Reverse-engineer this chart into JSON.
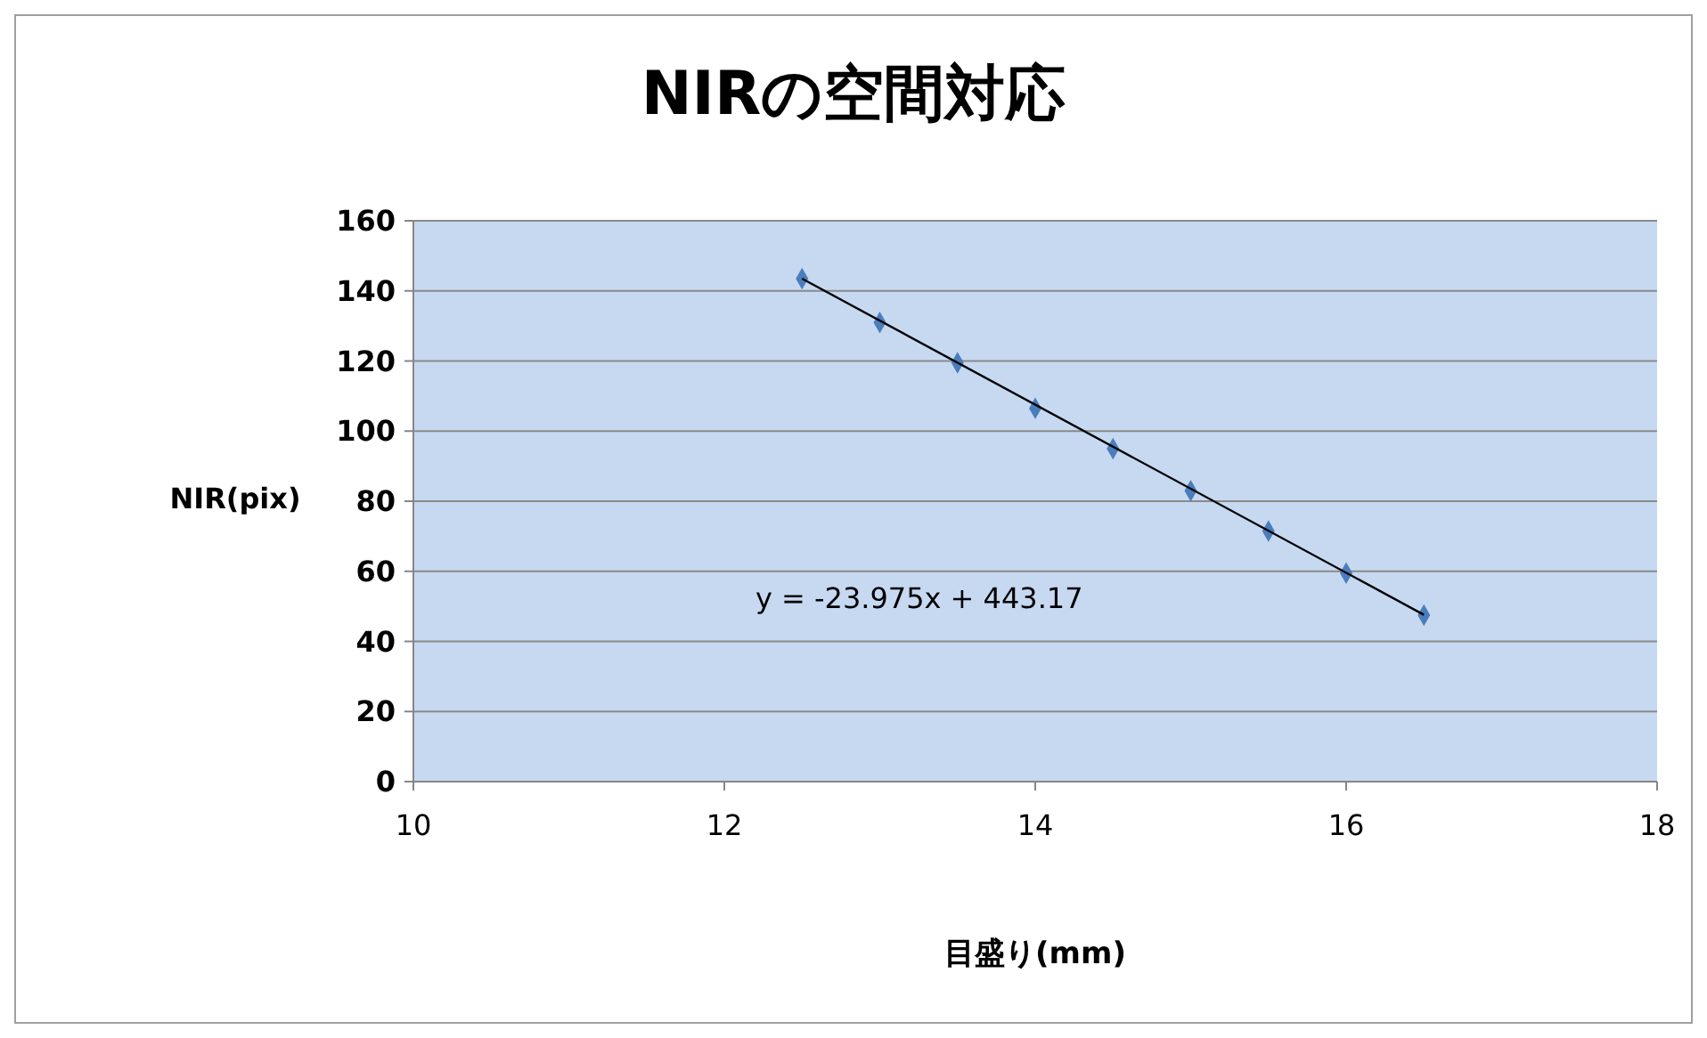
{
  "chart_data": {
    "type": "scatter",
    "title": "NIRの空間対応",
    "xlabel": "目盛り(mm)",
    "ylabel": "NIR(pix)",
    "xlim": [
      10,
      18
    ],
    "xticks": [
      10,
      12,
      14,
      16,
      18
    ],
    "ylim": [
      0,
      160
    ],
    "yticks": [
      0,
      20,
      40,
      60,
      80,
      100,
      120,
      140,
      160
    ],
    "grid": "y",
    "series": [
      {
        "color": "#4a7ebb",
        "marker": "diamond",
        "x": [
          12.5,
          13,
          13.5,
          14,
          14.5,
          15,
          15.5,
          16,
          16.5
        ],
        "values": [
          143.5,
          131,
          119.5,
          106.5,
          95,
          83,
          71.5,
          59.5,
          47.5
        ]
      },
      {
        "type": "line",
        "color": "#000000",
        "marker": "none",
        "line_style": "solid",
        "x": [
          12.5,
          16.5
        ],
        "values": [
          143.5,
          47.6
        ]
      }
    ],
    "annotations": [
      "y = -23.975x + 443.17"
    ]
  }
}
